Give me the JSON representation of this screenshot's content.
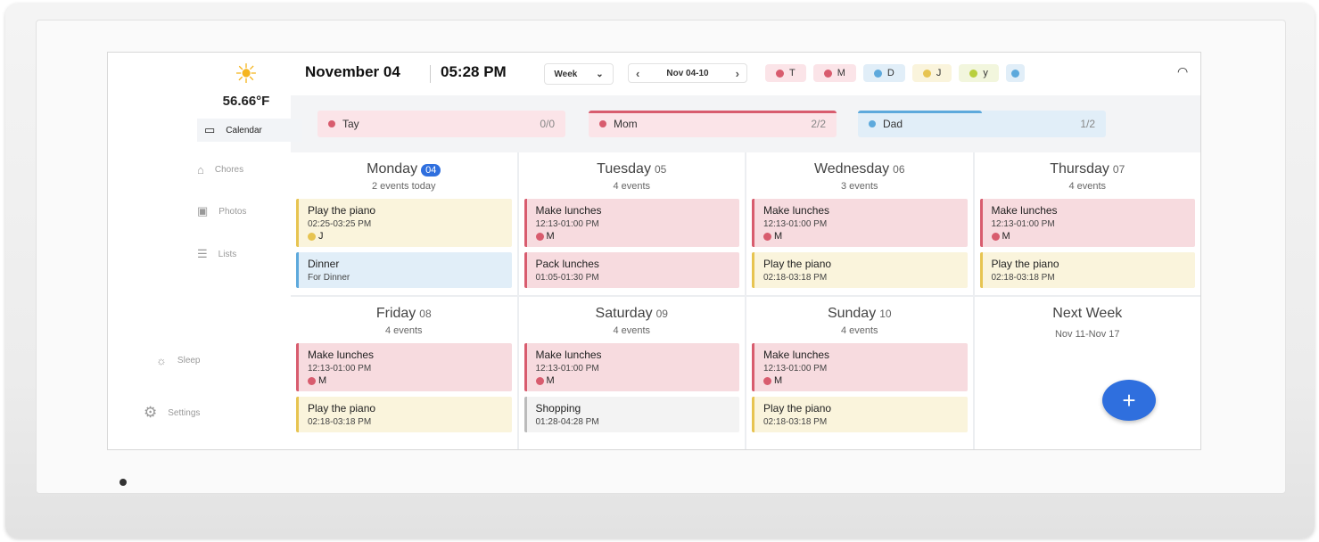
{
  "weather": {
    "icon": "sun-icon",
    "temp": "56.66°F"
  },
  "sidebar": {
    "items": [
      {
        "label": "Calendar",
        "icon": "calendar-icon",
        "active": true
      },
      {
        "label": "Chores",
        "icon": "chores-icon"
      },
      {
        "label": "Photos",
        "icon": "photos-icon"
      },
      {
        "label": "Lists",
        "icon": "lists-icon"
      },
      {
        "label": "Sleep",
        "icon": "sun-icon"
      },
      {
        "label": "Settings",
        "icon": "gear-icon"
      }
    ]
  },
  "header": {
    "date": "November 04",
    "time": "05:28 PM",
    "view": "Week",
    "range": "Nov 04-10"
  },
  "members": [
    {
      "initial": "T",
      "color": "#d85c6e"
    },
    {
      "initial": "M",
      "color": "#d85c6e"
    },
    {
      "initial": "D",
      "color": "#5da9dc"
    },
    {
      "initial": "J",
      "color": "#e7c451"
    },
    {
      "initial": "y",
      "color": "#b8cf3c"
    }
  ],
  "progress": [
    {
      "name": "Tay",
      "count": "0/0",
      "done": 0,
      "color": "#d85c6e"
    },
    {
      "name": "Mom",
      "count": "2/2",
      "done": 1,
      "color": "#d85c6e"
    },
    {
      "name": "Dad",
      "count": "1/2",
      "done": 0.5,
      "color": "#5da9dc"
    }
  ],
  "days": [
    {
      "name": "Monday",
      "num": "04",
      "today": true,
      "count": "2 events today",
      "events": [
        {
          "title": "Play the piano",
          "time": "02:25-03:25 PM",
          "owner": "J",
          "color": "yel"
        },
        {
          "title": "Dinner",
          "time": "For Dinner",
          "owner": "",
          "color": "blue"
        }
      ]
    },
    {
      "name": "Tuesday",
      "num": "05",
      "count": "4 events",
      "events": [
        {
          "title": "Make lunches",
          "time": "12:13-01:00 PM",
          "owner": "M",
          "color": "red"
        },
        {
          "title": "Pack lunches",
          "time": "01:05-01:30 PM",
          "owner": "",
          "color": "red"
        }
      ]
    },
    {
      "name": "Wednesday",
      "num": "06",
      "count": "3 events",
      "events": [
        {
          "title": "Make lunches",
          "time": "12:13-01:00 PM",
          "owner": "M",
          "color": "red"
        },
        {
          "title": "Play the piano",
          "time": "02:18-03:18 PM",
          "owner": "",
          "color": "yel"
        }
      ]
    },
    {
      "name": "Thursday",
      "num": "07",
      "count": "4 events",
      "events": [
        {
          "title": "Make lunches",
          "time": "12:13-01:00 PM",
          "owner": "M",
          "color": "red"
        },
        {
          "title": "Play the piano",
          "time": "02:18-03:18 PM",
          "owner": "",
          "color": "yel"
        }
      ]
    },
    {
      "name": "Friday",
      "num": "08",
      "count": "4 events",
      "events": [
        {
          "title": "Make lunches",
          "time": "12:13-01:00 PM",
          "owner": "M",
          "color": "red"
        },
        {
          "title": "Play the piano",
          "time": "02:18-03:18 PM",
          "owner": "",
          "color": "yel"
        }
      ]
    },
    {
      "name": "Saturday",
      "num": "09",
      "count": "4 events",
      "events": [
        {
          "title": "Make lunches",
          "time": "12:13-01:00 PM",
          "owner": "M",
          "color": "red"
        },
        {
          "title": "Shopping",
          "time": "01:28-04:28 PM",
          "owner": "",
          "color": "grey"
        }
      ]
    },
    {
      "name": "Sunday",
      "num": "10",
      "count": "4 events",
      "events": [
        {
          "title": "Make lunches",
          "time": "12:13-01:00 PM",
          "owner": "M",
          "color": "red"
        },
        {
          "title": "Play the piano",
          "time": "02:18-03:18 PM",
          "owner": "",
          "color": "yel"
        }
      ]
    }
  ],
  "next_week": {
    "title": "Next Week",
    "range": "Nov 11-Nov 17"
  },
  "fab": {
    "icon": "plus-icon",
    "label": "+"
  }
}
